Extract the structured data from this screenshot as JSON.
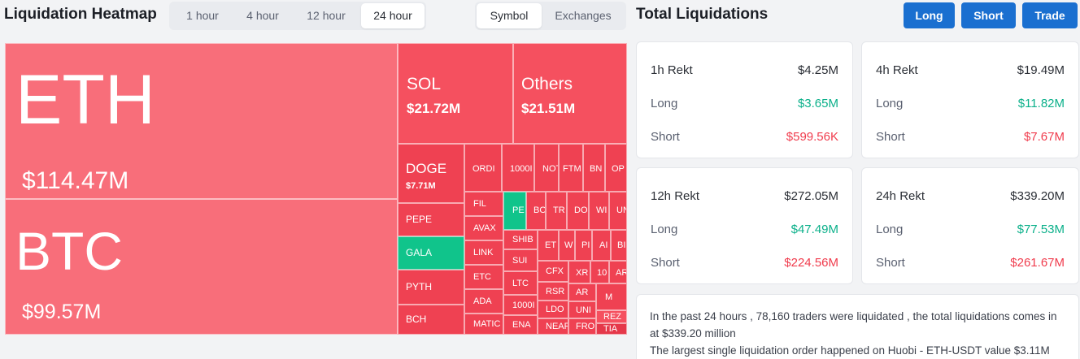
{
  "heatmap": {
    "title": "Liquidation Heatmap",
    "time_options": [
      "1 hour",
      "4 hour",
      "12 hour",
      "24 hour"
    ],
    "active_time": "24 hour",
    "view_options": [
      "Symbol",
      "Exchanges"
    ],
    "active_view": "Symbol",
    "tiles": {
      "eth": {
        "name": "ETH",
        "value": "$114.47M"
      },
      "btc": {
        "name": "BTC",
        "value": "$99.57M"
      },
      "sol": {
        "name": "SOL",
        "value": "$21.72M"
      },
      "others": {
        "name": "Others",
        "value": "$21.51M"
      },
      "doge": {
        "name": "DOGE",
        "value": "$7.71M"
      },
      "pepe": {
        "name": "PEPE"
      },
      "gala": {
        "name": "GALA"
      },
      "pyth": {
        "name": "PYTH"
      },
      "bch": {
        "name": "BCH"
      },
      "ordi": {
        "name": "ORDI"
      },
      "k1000": {
        "name": "1000I"
      },
      "not": {
        "name": "NOT"
      },
      "ftm": {
        "name": "FTM"
      },
      "bn": {
        "name": "BN"
      },
      "op": {
        "name": "OP"
      },
      "fil": {
        "name": "FIL"
      },
      "avax": {
        "name": "AVAX"
      },
      "link": {
        "name": "LINK"
      },
      "etc": {
        "name": "ETC"
      },
      "ada": {
        "name": "ADA"
      },
      "matic": {
        "name": "MATIC"
      },
      "pe": {
        "name": "PE"
      },
      "bo": {
        "name": "BO"
      },
      "tr": {
        "name": "TR"
      },
      "do": {
        "name": "DO"
      },
      "wi": {
        "name": "WI"
      },
      "un": {
        "name": "UN"
      },
      "shib": {
        "name": "SHIB"
      },
      "sui": {
        "name": "SUI"
      },
      "ltc": {
        "name": "LTC"
      },
      "k1000b": {
        "name": "1000I"
      },
      "ena": {
        "name": "ENA"
      },
      "et": {
        "name": "ET"
      },
      "w": {
        "name": "W"
      },
      "pi": {
        "name": "PI"
      },
      "ai": {
        "name": "AI"
      },
      "bi": {
        "name": "BI"
      },
      "cfx": {
        "name": "CFX"
      },
      "xr": {
        "name": "XR"
      },
      "t10": {
        "name": "10"
      },
      "ar2": {
        "name": "AR"
      },
      "rsr": {
        "name": "RSR"
      },
      "ar": {
        "name": "AR"
      },
      "m": {
        "name": "M"
      },
      "ldo": {
        "name": "LDO"
      },
      "uni": {
        "name": "UNI"
      },
      "near": {
        "name": "NEAR"
      },
      "fro": {
        "name": "FRO"
      },
      "rez": {
        "name": "REZ"
      },
      "tia": {
        "name": "TIA"
      }
    }
  },
  "totals": {
    "title": "Total Liquidations",
    "buttons": {
      "long": "Long",
      "short": "Short",
      "trade": "Trade"
    },
    "labels": {
      "long": "Long",
      "short": "Short"
    },
    "cards": {
      "h1": {
        "title": "1h Rekt",
        "total": "$4.25M",
        "long": "$3.65M",
        "short": "$599.56K"
      },
      "h4": {
        "title": "4h Rekt",
        "total": "$19.49M",
        "long": "$11.82M",
        "short": "$7.67M"
      },
      "h12": {
        "title": "12h Rekt",
        "total": "$272.05M",
        "long": "$47.49M",
        "short": "$224.56M"
      },
      "h24": {
        "title": "24h Rekt",
        "total": "$339.20M",
        "long": "$77.53M",
        "short": "$261.67M"
      }
    },
    "summary": {
      "line1": "In the past 24 hours , 78,160 traders were liquidated , the total liquidations comes in at $339.20 million",
      "line2": "The largest single liquidation order happened on Huobi - ETH-USDT value $3.11M"
    }
  },
  "colors": {
    "accent": "#1a6fd0",
    "long": "#0bb08a",
    "short": "#f03c4d",
    "tile_green": "#10c48b",
    "tile_red": "#f5505f"
  }
}
